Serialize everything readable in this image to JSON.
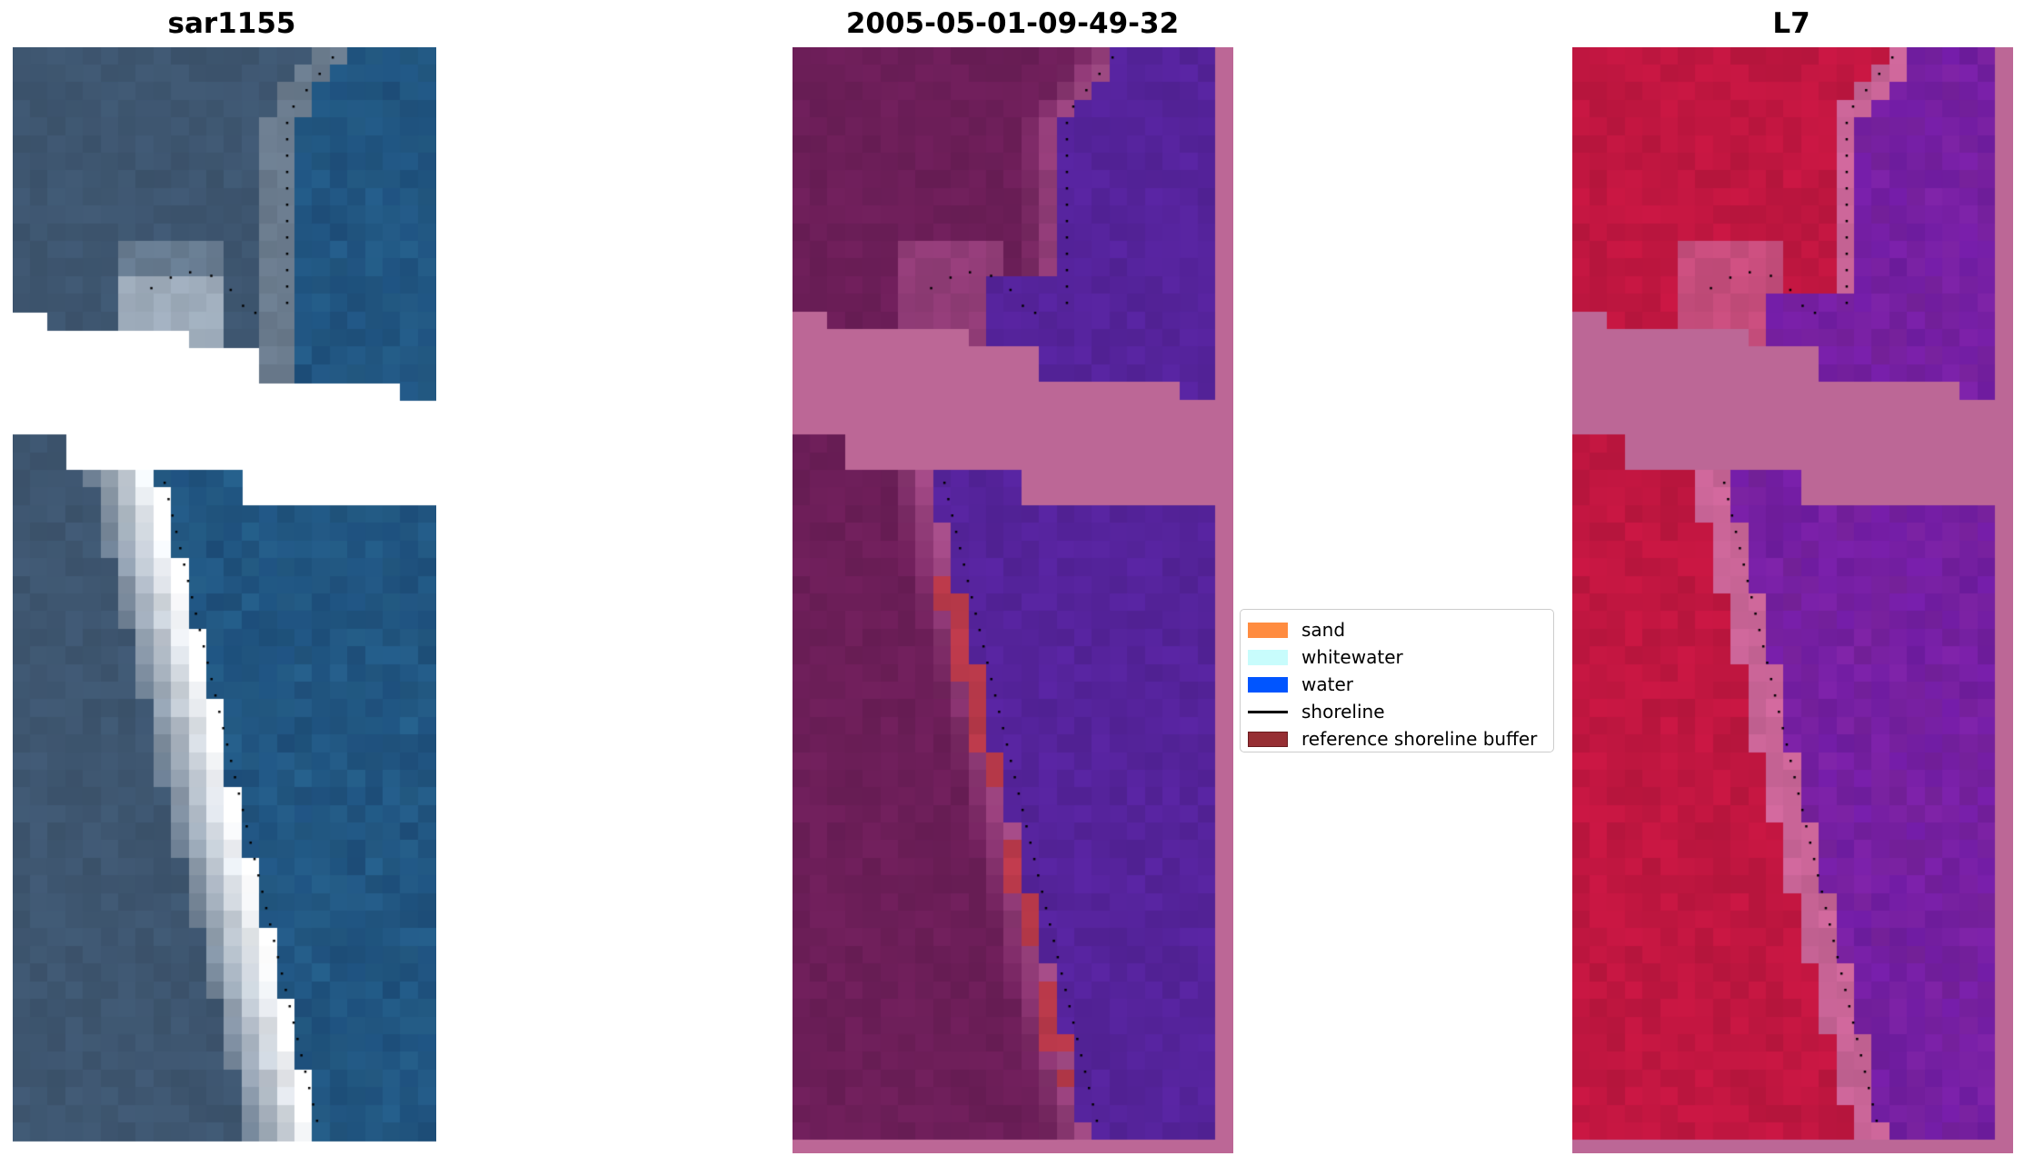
{
  "chart_data": {
    "type": "image-panels",
    "panels": [
      {
        "title": "sar1155",
        "kind": "rgb"
      },
      {
        "title": "2005-05-01-09-49-32",
        "kind": "classification"
      },
      {
        "title": "L7",
        "kind": "mndwi"
      }
    ],
    "legend": {
      "placement": "center-right of middle panel",
      "items": [
        {
          "label": "sand",
          "type": "patch",
          "color": "#ff8c40"
        },
        {
          "label": "whitewater",
          "type": "patch",
          "color": "#c8fcfc"
        },
        {
          "label": "water",
          "type": "patch",
          "color": "#0055ff"
        },
        {
          "label": "shoreline",
          "type": "line",
          "color": "#000000"
        },
        {
          "label": "reference shoreline buffer",
          "type": "patch",
          "color": "#962e33"
        }
      ]
    }
  }
}
